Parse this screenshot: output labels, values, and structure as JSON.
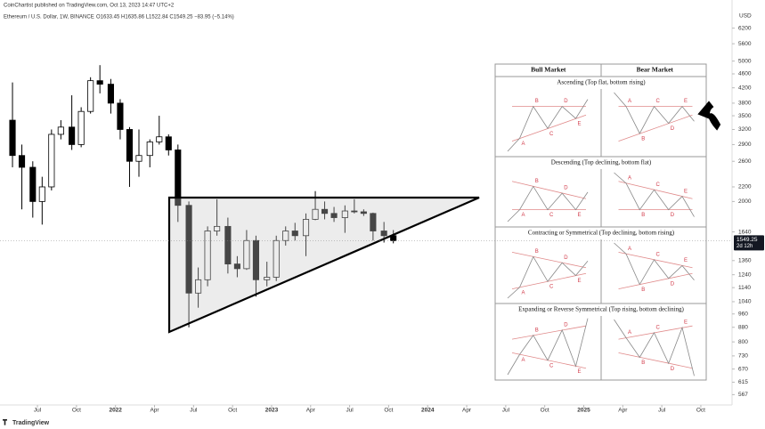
{
  "header": {
    "publisher": "CoinChartist published on TradingView.com, Oct 13, 2023 14:47 UTC+2",
    "symbol": "Ethereum / U.S. Dollar, 1W, BINANCE",
    "ohlc": "O1633.45 H1635.86 L1522.84 C1549.25 −83.95 (−5.14%)"
  },
  "chart_data": {
    "type": "candlestick",
    "x": [
      2021.34,
      2021.4,
      2021.47,
      2021.53,
      2021.59,
      2021.65,
      2021.72,
      2021.78,
      2021.84,
      2021.9,
      2021.97,
      2022.03,
      2022.09,
      2022.15,
      2022.22,
      2022.28,
      2022.34,
      2022.4,
      2022.47,
      2022.53,
      2022.59,
      2022.65,
      2022.72,
      2022.78,
      2022.84,
      2022.9,
      2022.97,
      2023.03,
      2023.09,
      2023.15,
      2023.22,
      2023.28,
      2023.34,
      2023.4,
      2023.47,
      2023.53,
      2023.59,
      2023.65,
      2023.72,
      2023.78
    ],
    "open": [
      3400,
      2700,
      2500,
      2000,
      2200,
      3100,
      3250,
      2900,
      3600,
      4400,
      4300,
      3800,
      3200,
      2600,
      2700,
      2950,
      3050,
      2800,
      1950,
      1100,
      1200,
      1650,
      1700,
      1330,
      1290,
      1550,
      1200,
      1220,
      1550,
      1650,
      1600,
      1780,
      1900,
      1850,
      1800,
      1880,
      1870,
      1850,
      1650,
      1600
    ],
    "high": [
      4350,
      2900,
      2600,
      2350,
      3200,
      3400,
      4000,
      3700,
      4500,
      4870,
      4450,
      3900,
      3250,
      3200,
      3000,
      3500,
      3100,
      2900,
      2000,
      1300,
      1700,
      2030,
      1800,
      1400,
      1660,
      1600,
      1350,
      1600,
      1700,
      1740,
      1850,
      2140,
      2000,
      1930,
      1950,
      2030,
      1900,
      1860,
      1750,
      1660
    ],
    "low": [
      2500,
      1900,
      1800,
      1720,
      2150,
      3000,
      2800,
      2850,
      3550,
      4050,
      3550,
      3000,
      2200,
      2350,
      2500,
      2900,
      2700,
      1750,
      880,
      1000,
      1150,
      1600,
      1250,
      1220,
      1280,
      1075,
      1150,
      1190,
      1500,
      1550,
      1400,
      1770,
      1780,
      1750,
      1630,
      1850,
      1820,
      1550,
      1530,
      1522
    ],
    "close": [
      2700,
      2500,
      2000,
      2200,
      3100,
      3250,
      2900,
      3600,
      4400,
      4300,
      3800,
      3200,
      2600,
      2700,
      2950,
      3050,
      2800,
      1950,
      1100,
      1200,
      1650,
      1700,
      1330,
      1290,
      1550,
      1200,
      1220,
      1550,
      1650,
      1600,
      1780,
      1900,
      1850,
      1800,
      1880,
      1870,
      1850,
      1650,
      1600,
      1549
    ],
    "up_color": "#ffffff",
    "down_color": "#000000",
    "xlim": [
      2021.26,
      2025.95
    ],
    "xticks": [
      {
        "value": 2021.5,
        "label": "Jul"
      },
      {
        "value": 2021.75,
        "label": "Oct"
      },
      2022,
      {
        "value": 2022.25,
        "label": "Apr"
      },
      {
        "value": 2022.5,
        "label": "Jul"
      },
      {
        "value": 2022.75,
        "label": "Oct"
      },
      2023,
      {
        "value": 2023.25,
        "label": "Apr"
      },
      {
        "value": 2023.5,
        "label": "Jul"
      },
      {
        "value": 2023.75,
        "label": "Oct"
      },
      2024,
      {
        "value": 2024.25,
        "label": "Apr"
      },
      {
        "value": 2024.5,
        "label": "Jul"
      },
      {
        "value": 2024.75,
        "label": "Oct"
      },
      2025,
      {
        "value": 2025.25,
        "label": "Apr"
      },
      {
        "value": 2025.5,
        "label": "Jul"
      },
      {
        "value": 2025.75,
        "label": "Oct"
      }
    ],
    "ylim": [
      530,
      7450
    ],
    "yticks": [
      567,
      615,
      670,
      730,
      800,
      880,
      960,
      1040,
      1140,
      1240,
      1360,
      1640,
      2000,
      2200,
      2600,
      2900,
      3200,
      3500,
      3800,
      4200,
      4600,
      5000,
      5600,
      6200
    ],
    "log_scale": true,
    "y_unit": "USD",
    "last_price": 1549.25,
    "countdown": "2d 12h"
  },
  "inset": {
    "columns": [
      "Bull Market",
      "Bear Market"
    ],
    "rows": [
      "Ascending (Top flat, bottom rising)",
      "Descending (Top declining, bottom flat)",
      "Contracting or Symmetrical (Top declining, bottom rising)",
      "Expanding or Reverse Symmetrical (Top rising, bottom declining)"
    ],
    "wave_labels": [
      "A",
      "B",
      "C",
      "D",
      "E"
    ]
  },
  "footer": {
    "logo": "TradingView"
  }
}
